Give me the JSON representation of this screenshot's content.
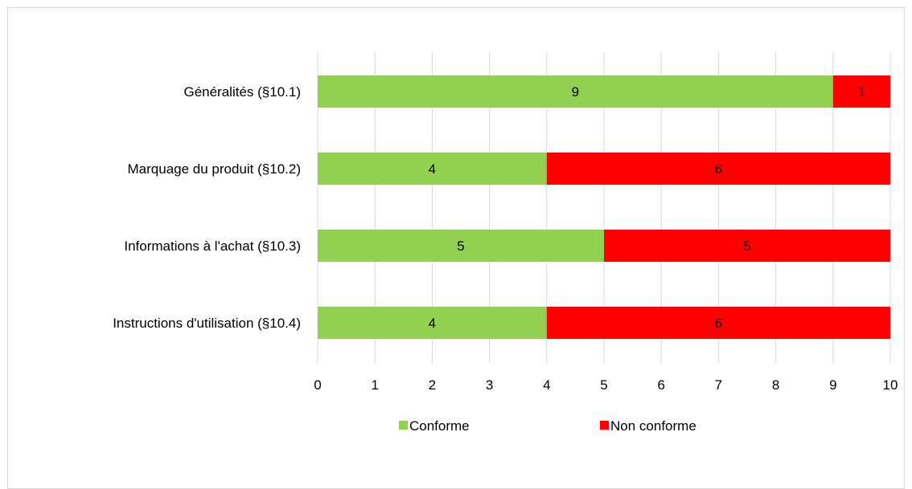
{
  "chart_data": {
    "type": "bar",
    "orientation": "horizontal",
    "stacked": true,
    "categories": [
      "Généralités (§10.1)",
      "Marquage du produit (§10.2)",
      "Informations à l'achat (§10.3)",
      "Instructions d'utilisation (§10.4)"
    ],
    "series": [
      {
        "name": "Conforme",
        "color": "#92d050",
        "values": [
          9,
          4,
          5,
          4
        ]
      },
      {
        "name": "Non conforme",
        "color": "#ff0000",
        "values": [
          1,
          6,
          5,
          6
        ]
      }
    ],
    "xlim": [
      0,
      10
    ],
    "x_ticks": [
      "0",
      "1",
      "2",
      "3",
      "4",
      "5",
      "6",
      "7",
      "8",
      "9",
      "10"
    ],
    "grid": true,
    "legend_position": "bottom",
    "data_labels": true
  }
}
